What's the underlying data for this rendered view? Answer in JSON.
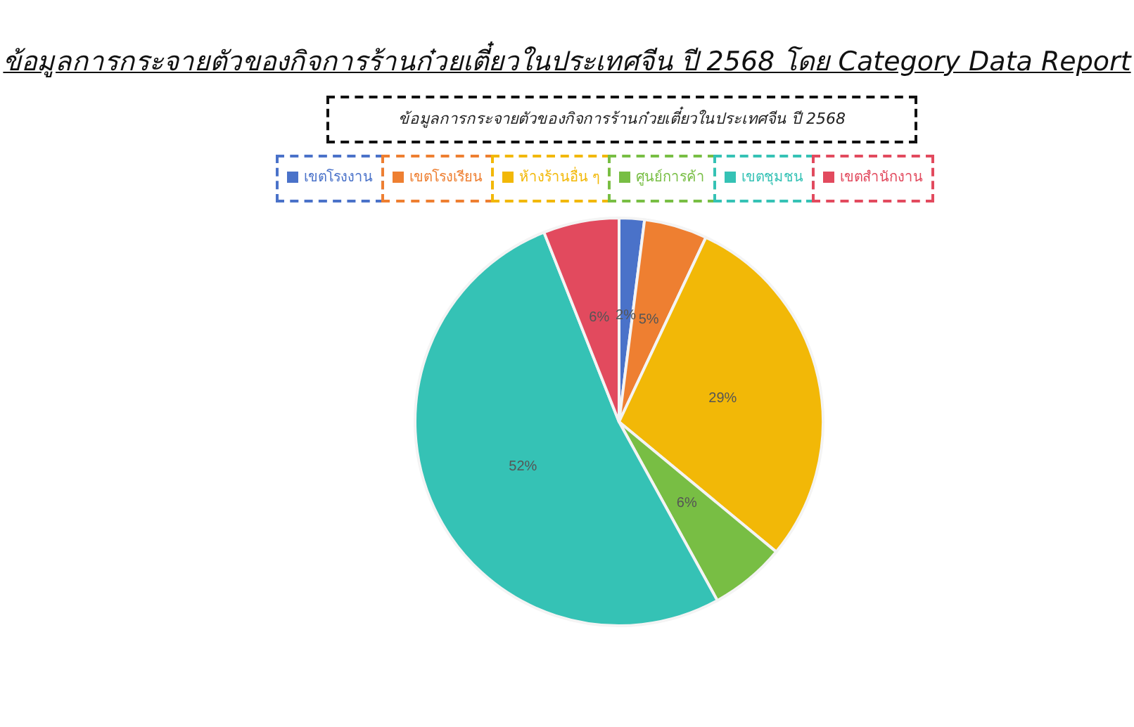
{
  "chart_data": {
    "type": "pie",
    "title": "ข้อมูลการกระจายตัวของกิจการร้านก๋วยเตี๋ยวในประเทศจีน ปี 2568 โดย Category Data Report",
    "subtitle": "ข้อมูลการกระจายตัวของกิจการร้านก๋วยเตี๋ยวในประเทศจีน ปี 2568",
    "categories": [
      "เขตโรงงาน",
      "เขตโรงเรียน",
      "ห้างร้านอื่น ๆ",
      "ศูนย์การค้า",
      "เขตชุมชน",
      "เขตสำนักงาน"
    ],
    "values": [
      2,
      5,
      29,
      6,
      52,
      6
    ],
    "value_labels": [
      "2%",
      "5%",
      "29%",
      "6%",
      "52%",
      "6%"
    ],
    "colors": [
      "#4a72c9",
      "#ee7f31",
      "#f2b807",
      "#78be44",
      "#35c2b5",
      "#e24a5e"
    ],
    "legend": "top"
  }
}
